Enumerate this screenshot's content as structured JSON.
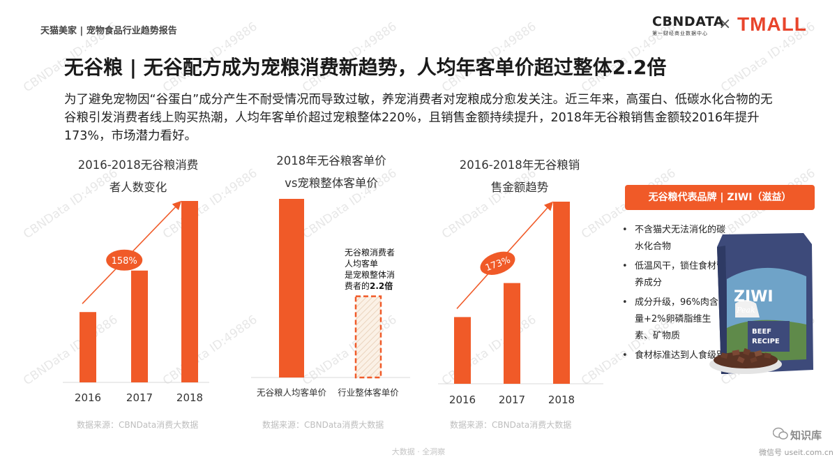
{
  "header": {
    "report_title": "天猫美家 | 宠物食品行业趋势报告",
    "logo_left_main": "CBNDATA",
    "logo_left_sub": "第一财经商业数据中心",
    "logo_sep": "×",
    "logo_right": "TMALL"
  },
  "page_title": "无谷粮 | 无谷配方成为宠粮消费新趋势，人均年客单价超过整体2.2倍",
  "intro": "为了避免宠物因“谷蛋白”成分产生不耐受情况而导致过敏，养宠消费者对宠粮成分愈发关注。近三年来，高蛋白、低碳水化合物的无谷粮引发消费者线上购买热潮，人均年客单价超过宠粮整体220%，且销售金额持续提升，2018年无谷粮销售金额较2016年提升173%，市场潜力看好。",
  "panel1": {
    "title_line1": "2016-2018无谷粮消费",
    "title_line2": "者人数变化",
    "source": "数据来源：CBNData消费大数据"
  },
  "panel2": {
    "title_line1": "2018年无谷粮客单价",
    "title_line2": "vs宠粮整体客单价",
    "note_line1": "无谷粮消费者",
    "note_line2": "人均客单",
    "note_line3": "是宠粮整体消",
    "note_line4_prefix": "费者的",
    "note_line4_bold": "2.2倍",
    "source": "数据来源：CBNData消费大数据"
  },
  "panel3": {
    "title_line1": "2016-2018年无谷粮销",
    "title_line2": "售金额趋势",
    "source": "数据来源：CBNData消费大数据"
  },
  "brand": {
    "banner": "无谷粮代表品牌 | ZIWI（滋益）",
    "bullets": [
      "不含猫犬无法消化的碳水化合物",
      "低温风干，锁住食材营养成分",
      "成分升级，96%肉含量+2%卵磷脂维生素、矿物质",
      "食材标准达到人食级别"
    ],
    "product_label_brand": "ZIWI",
    "product_label_sub": "Peak",
    "product_label_line1": "BEEF",
    "product_label_line2": "RECIPE"
  },
  "footer": {
    "center": "大数据 · 全洞察",
    "wechat_name": "知识库",
    "wechat_sub": "微信号 useit.com.cn"
  },
  "watermark": "CBNData ID:49886",
  "colors": {
    "accent": "#f05a28",
    "hatch": "#f6e7d9"
  },
  "chart_data": [
    {
      "type": "bar",
      "categories": [
        "2016",
        "2017",
        "2018"
      ],
      "values": [
        100,
        159,
        258
      ],
      "ylim": [
        0,
        270
      ],
      "annotation": "158%",
      "title": "2016-2018无谷粮消费者人数变化"
    },
    {
      "type": "bar",
      "categories": [
        "无谷粮人均客单价",
        "行业整体客单价"
      ],
      "values": [
        2.2,
        1.0
      ],
      "ylim": [
        0,
        2.6
      ],
      "note": "无谷粮消费者人均客单是宠粮整体消费者的2.2倍",
      "title": "2018年无谷粮客单价vs宠粮整体客单价"
    },
    {
      "type": "bar",
      "categories": [
        "2016",
        "2017",
        "2018"
      ],
      "values": [
        100,
        151,
        273
      ],
      "ylim": [
        0,
        285
      ],
      "annotation": "173%",
      "title": "2016-2018年无谷粮销售金额趋势"
    }
  ]
}
